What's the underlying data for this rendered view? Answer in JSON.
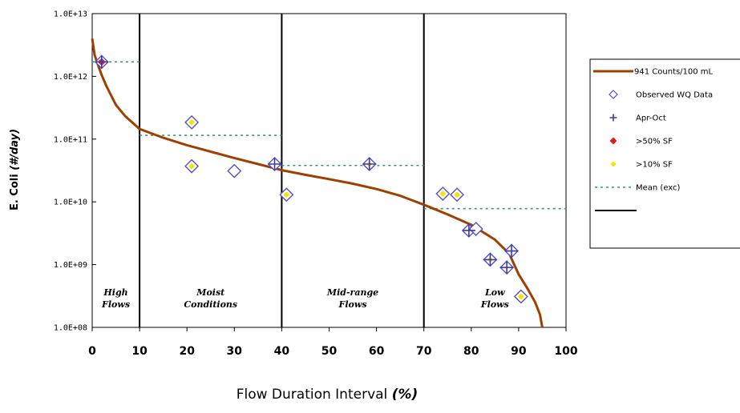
{
  "chart_data": {
    "type": "scatter",
    "title": "",
    "xlabel": "Flow Duration Interval",
    "xlabel_unit": "(%)",
    "ylabel": "E. Coli",
    "ylabel_unit": "(#/day)",
    "xlim": [
      0,
      100
    ],
    "ylim": [
      100000000.0,
      10000000000000.0
    ],
    "yscale": "log",
    "grid": false,
    "legend_position": "right",
    "x_ticks": [
      "0",
      "10",
      "20",
      "30",
      "40",
      "50",
      "60",
      "70",
      "80",
      "90",
      "100"
    ],
    "y_ticks": [
      "1.0E+08",
      "1.0E+09",
      "1.0E+10",
      "1.0E+11",
      "1.0E+12",
      "1.0E+13"
    ],
    "dividers": [
      10,
      40,
      70
    ],
    "regions": [
      {
        "lines": [
          "High",
          "Flows"
        ],
        "x_center": 5
      },
      {
        "lines": [
          "Moist",
          "Conditions"
        ],
        "x_center": 25
      },
      {
        "lines": [
          "Mid-range",
          "Flows"
        ],
        "x_center": 55
      },
      {
        "lines": [
          "Low",
          "Flows"
        ],
        "x_center": 85
      }
    ],
    "colors": {
      "curve": "#a04000",
      "observed": "#5550c8",
      "apr_oct": "#3a3aa8",
      "sf50": "#e02020",
      "sf10": "#f5e400",
      "mean": "#3a9a6a",
      "divider": "#000000"
    },
    "curve": {
      "name": "941 Counts/100 mL",
      "points": [
        [
          0,
          4000000000000.0
        ],
        [
          0.5,
          2200000000000.0
        ],
        [
          1,
          1700000000000.0
        ],
        [
          2,
          1050000000000.0
        ],
        [
          3,
          700000000000.0
        ],
        [
          5,
          350000000000.0
        ],
        [
          7,
          230000000000.0
        ],
        [
          10,
          145000000000.0
        ],
        [
          15,
          105000000000.0
        ],
        [
          20,
          80000000000.0
        ],
        [
          25,
          63000000000.0
        ],
        [
          30,
          50000000000.0
        ],
        [
          35,
          40000000000.0
        ],
        [
          40,
          32000000000.0
        ],
        [
          45,
          27000000000.0
        ],
        [
          50,
          23000000000.0
        ],
        [
          55,
          19500000000.0
        ],
        [
          60,
          16000000000.0
        ],
        [
          65,
          12500000000.0
        ],
        [
          70,
          9000000000.0
        ],
        [
          75,
          6300000000.0
        ],
        [
          80,
          4300000000.0
        ],
        [
          85,
          2500000000.0
        ],
        [
          88,
          1500000000.0
        ],
        [
          90,
          700000000.0
        ],
        [
          92,
          400000000.0
        ],
        [
          93.5,
          250000000.0
        ],
        [
          94.5,
          160000000.0
        ],
        [
          95,
          100000000.0
        ]
      ]
    },
    "observed": {
      "name": "Observed WQ Data",
      "points": [
        [
          2,
          1700000000000.0
        ],
        [
          21,
          185000000000.0
        ],
        [
          21,
          37000000000.0
        ],
        [
          30,
          31000000000.0
        ],
        [
          38.5,
          40000000000.0
        ],
        [
          41,
          13000000000.0
        ],
        [
          58.5,
          40000000000.0
        ],
        [
          74,
          13500000000.0
        ],
        [
          77,
          13000000000.0
        ],
        [
          79.5,
          3500000000.0
        ],
        [
          81,
          3700000000.0
        ],
        [
          84,
          1200000000.0
        ],
        [
          87.5,
          900000000.0
        ],
        [
          88.5,
          1650000000.0
        ],
        [
          90.5,
          310000000.0
        ]
      ]
    },
    "apr_oct": {
      "name": "Apr-Oct",
      "points": [
        [
          2,
          1700000000000.0
        ],
        [
          38.5,
          40000000000.0
        ],
        [
          58.5,
          40000000000.0
        ],
        [
          79.5,
          3500000000.0
        ],
        [
          84,
          1200000000.0
        ],
        [
          87.5,
          900000000.0
        ],
        [
          88.5,
          1650000000.0
        ]
      ]
    },
    "sf50": {
      "name": ">50% SF",
      "points": [
        [
          2,
          1700000000000.0
        ]
      ]
    },
    "sf10": {
      "name": ">10% SF",
      "points": [
        [
          2,
          1700000000000.0
        ],
        [
          21,
          185000000000.0
        ],
        [
          21,
          37000000000.0
        ],
        [
          41,
          13000000000.0
        ],
        [
          58.5,
          40000000000.0
        ],
        [
          74,
          13500000000.0
        ],
        [
          77,
          13000000000.0
        ],
        [
          84,
          1200000000.0
        ],
        [
          90.5,
          310000000.0
        ]
      ]
    },
    "mean": {
      "name": "Mean (exc)",
      "segments": [
        {
          "x": [
            0,
            10
          ],
          "y": 1700000000000.0
        },
        {
          "x": [
            10,
            40
          ],
          "y": 115000000000.0
        },
        {
          "x": [
            40,
            70
          ],
          "y": 38000000000.0
        },
        {
          "x": [
            70,
            100
          ],
          "y": 7800000000.0
        }
      ]
    },
    "legend": [
      {
        "key": "curve",
        "label": "941 Counts/100 mL"
      },
      {
        "key": "observed",
        "label": "Observed WQ Data"
      },
      {
        "key": "apr_oct",
        "label": "Apr-Oct"
      },
      {
        "key": "sf50",
        "label": ">50% SF"
      },
      {
        "key": "sf10",
        "label": ">10% SF"
      },
      {
        "key": "mean",
        "label": "Mean (exc)"
      },
      {
        "key": "divider",
        "label": ""
      }
    ]
  }
}
